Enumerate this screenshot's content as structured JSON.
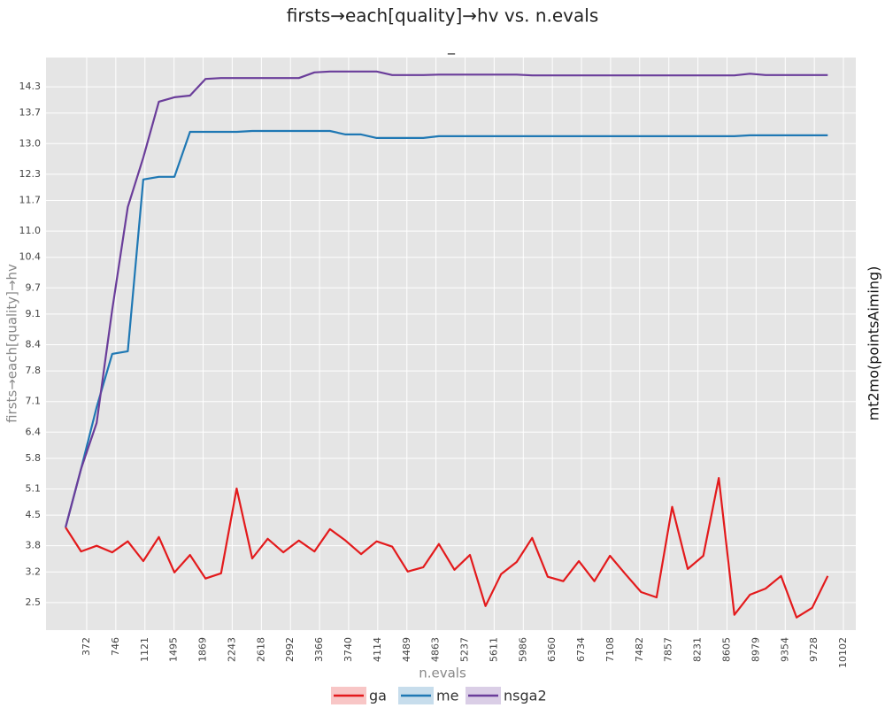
{
  "chart_data": {
    "type": "line",
    "title": "firsts→each[quality]→hv vs. n.evals",
    "subtitle": "_",
    "x_label": "n.evals",
    "y_label": "firsts→each[quality]→hv",
    "facet_label": "mt2mo(pointsAiming)",
    "legend": "bottom",
    "grid": true,
    "x": [
      100,
      300,
      500,
      700,
      900,
      1100,
      1300,
      1500,
      1700,
      1900,
      2100,
      2300,
      2500,
      2700,
      2900,
      3100,
      3300,
      3500,
      3700,
      3900,
      4100,
      4300,
      4500,
      4700,
      4900,
      5100,
      5300,
      5500,
      5700,
      5900,
      6100,
      6300,
      6500,
      6700,
      6900,
      7100,
      7300,
      7500,
      7700,
      7900,
      8100,
      8300,
      8500,
      8700,
      8900,
      9100,
      9300,
      9500,
      9700,
      9900
    ],
    "xlim": [
      -151,
      10261
    ],
    "xticks": [
      372,
      746,
      1121,
      1495,
      1869,
      2243,
      2618,
      2992,
      3366,
      3740,
      4114,
      4489,
      4863,
      5237,
      5611,
      5986,
      6360,
      6734,
      7108,
      7482,
      7857,
      8231,
      8605,
      8979,
      9354,
      9728,
      10102
    ],
    "ylim": [
      1.87,
      14.97
    ],
    "yticks": [
      2.5,
      3.2,
      3.8,
      4.5,
      5.1,
      5.8,
      6.4,
      7.1,
      7.8,
      8.4,
      9.1,
      9.7,
      10.4,
      {
        "value": 11,
        "label": "11.0"
      },
      11.7,
      12.3,
      {
        "value": 13,
        "label": "13.0"
      },
      13.7,
      14.3
    ],
    "series": [
      {
        "name": "ga",
        "color": "#e31a1c",
        "values": [
          4.22,
          3.67,
          3.8,
          3.65,
          3.9,
          3.45,
          4.0,
          3.19,
          3.59,
          3.05,
          3.17,
          5.11,
          3.51,
          3.96,
          3.65,
          3.92,
          3.67,
          4.18,
          3.92,
          3.61,
          3.9,
          3.78,
          3.21,
          3.31,
          3.84,
          3.25,
          3.59,
          2.42,
          3.15,
          3.43,
          3.98,
          3.09,
          2.99,
          3.45,
          2.99,
          3.57,
          3.15,
          2.74,
          2.62,
          4.69,
          3.27,
          3.57,
          5.35,
          2.22,
          2.68,
          2.82,
          3.11,
          2.16,
          2.38,
          3.11
        ]
      },
      {
        "name": "me",
        "color": "#1f78b4",
        "values": [
          4.22,
          5.56,
          6.97,
          8.19,
          8.25,
          12.18,
          12.24,
          12.24,
          13.27,
          13.27,
          13.27,
          13.27,
          13.29,
          13.29,
          13.29,
          13.29,
          13.29,
          13.29,
          13.21,
          13.21,
          13.13,
          13.13,
          13.13,
          13.13,
          13.17,
          13.17,
          13.17,
          13.17,
          13.17,
          13.17,
          13.17,
          13.17,
          13.17,
          13.17,
          13.17,
          13.17,
          13.17,
          13.17,
          13.17,
          13.17,
          13.17,
          13.17,
          13.17,
          13.17,
          13.19,
          13.19,
          13.19,
          13.19,
          13.19,
          13.19
        ]
      },
      {
        "name": "nsga2",
        "color": "#6a3d9a",
        "values": [
          4.22,
          5.56,
          6.61,
          9.2,
          11.55,
          12.68,
          13.96,
          14.06,
          14.1,
          14.48,
          14.5,
          14.5,
          14.5,
          14.5,
          14.5,
          14.5,
          14.63,
          14.65,
          14.65,
          14.65,
          14.65,
          14.57,
          14.57,
          14.57,
          14.58,
          14.58,
          14.58,
          14.58,
          14.58,
          14.58,
          14.56,
          14.56,
          14.56,
          14.56,
          14.56,
          14.56,
          14.56,
          14.56,
          14.56,
          14.56,
          14.56,
          14.56,
          14.56,
          14.56,
          14.6,
          14.57,
          14.57,
          14.57,
          14.57,
          14.57
        ]
      }
    ]
  }
}
